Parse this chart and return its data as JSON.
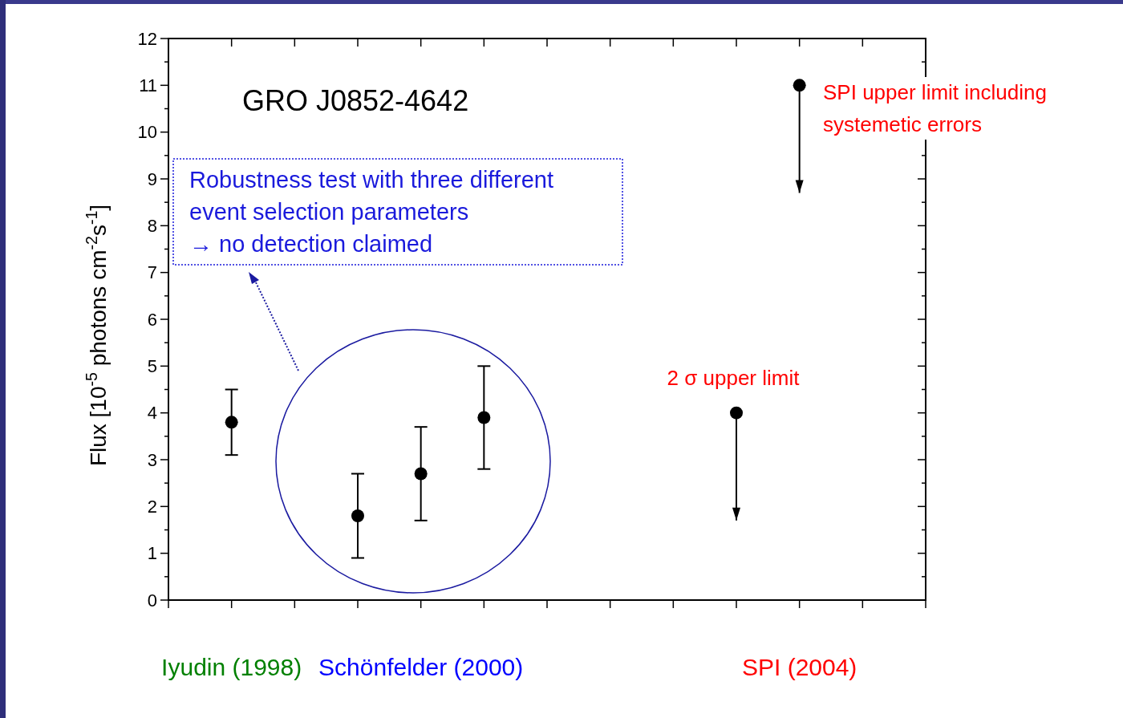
{
  "chart_data": {
    "type": "scatter",
    "title": "GRO J0852-4642",
    "ylabel": "Flux [10$^{-5}$ photons cm$^{-2}$s$^{-1}$]",
    "categories": [
      null,
      "Iyudin (1998)",
      null,
      null,
      "Schönfelder (2000)",
      null,
      null,
      null,
      null,
      null,
      "SPI (2004)",
      null,
      null
    ],
    "ylim": [
      0,
      12
    ],
    "yticks": [
      0,
      1,
      2,
      3,
      4,
      5,
      6,
      7,
      8,
      9,
      10,
      11,
      12
    ],
    "marker": "circle",
    "series": [
      {
        "color": "#000000",
        "values": [
          null,
          3.8,
          null,
          1.8,
          2.7,
          3.9,
          null,
          null,
          null,
          null,
          null,
          null,
          null
        ],
        "errors": [
          null,
          [
            3.1,
            4.5
          ],
          null,
          [
            0.9,
            2.7
          ],
          [
            1.7,
            3.7
          ],
          [
            2.8,
            5.0
          ],
          null,
          null,
          null,
          null,
          null,
          null,
          null
        ]
      },
      {
        "color": "#000000",
        "values": [
          null,
          null,
          null,
          null,
          null,
          null,
          null,
          null,
          null,
          4.0,
          11.0,
          null,
          null
        ],
        "errors": [
          null,
          null,
          null,
          null,
          null,
          null,
          null,
          null,
          null,
          [
            1.7,
            4.0
          ],
          [
            8.7,
            11.0
          ],
          null,
          null
        ]
      }
    ],
    "annotations": [
      "Robustness test with three different\nevent selection parameters\n→ no detection claimed",
      "SPI upper limit including\nsystemetic errors",
      "2 σ upper limit"
    ]
  }
}
